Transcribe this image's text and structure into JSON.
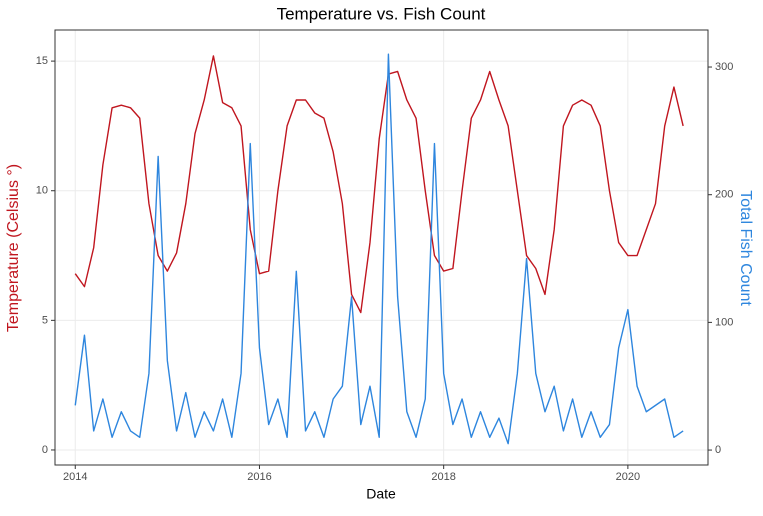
{
  "chart_data": {
    "type": "line",
    "title": "Temperature vs. Fish Count",
    "x_label": "Date",
    "y_label": "Temperature (Celsius °)",
    "y2_label": "Total Fish Count",
    "x": [
      2014.0,
      2014.1,
      2014.2,
      2014.3,
      2014.4,
      2014.5,
      2014.6,
      2014.7,
      2014.8,
      2014.9,
      2015.0,
      2015.1,
      2015.2,
      2015.3,
      2015.4,
      2015.5,
      2015.6,
      2015.7,
      2015.8,
      2015.9,
      2016.0,
      2016.1,
      2016.2,
      2016.3,
      2016.4,
      2016.5,
      2016.6,
      2016.7,
      2016.8,
      2016.9,
      2017.0,
      2017.1,
      2017.2,
      2017.3,
      2017.4,
      2017.5,
      2017.6,
      2017.7,
      2017.8,
      2017.9,
      2018.0,
      2018.1,
      2018.2,
      2018.3,
      2018.4,
      2018.5,
      2018.6,
      2018.7,
      2018.8,
      2018.9,
      2019.0,
      2019.1,
      2019.2,
      2019.3,
      2019.4,
      2019.5,
      2019.6,
      2019.7,
      2019.8,
      2019.9,
      2020.0,
      2020.1,
      2020.2,
      2020.3,
      2020.4,
      2020.5,
      2020.6
    ],
    "series": [
      {
        "name": "Temperature",
        "color": "#c0161f",
        "axis": "y",
        "values": [
          6.8,
          6.3,
          7.8,
          11,
          13.2,
          13.3,
          13.2,
          12.8,
          9.5,
          7.5,
          6.9,
          7.6,
          9.5,
          12.2,
          13.5,
          15.2,
          13.4,
          13.2,
          12.5,
          8.5,
          6.8,
          6.9,
          10,
          12.5,
          13.5,
          13.5,
          13,
          12.8,
          11.5,
          9.5,
          6,
          5.3,
          8,
          12,
          14.5,
          14.6,
          13.5,
          12.8,
          10,
          7.5,
          6.9,
          7,
          10,
          12.8,
          13.5,
          14.6,
          13.5,
          12.5,
          10,
          7.5,
          7,
          6,
          8.5,
          12.5,
          13.3,
          13.5,
          13.3,
          12.5,
          10,
          8,
          7.5,
          7.5,
          8.5,
          9.5,
          12.5,
          14,
          12.5
        ]
      },
      {
        "name": "Total Fish Count",
        "color": "#2e86de",
        "axis": "y2",
        "values": [
          35,
          90,
          15,
          40,
          10,
          30,
          15,
          10,
          60,
          230,
          70,
          15,
          45,
          10,
          30,
          15,
          40,
          10,
          60,
          240,
          80,
          20,
          40,
          10,
          140,
          15,
          30,
          10,
          40,
          50,
          120,
          20,
          50,
          10,
          310,
          120,
          30,
          10,
          40,
          240,
          60,
          20,
          40,
          10,
          30,
          10,
          25,
          5,
          60,
          150,
          60,
          30,
          50,
          15,
          40,
          10,
          30,
          10,
          20,
          80,
          110,
          50,
          30,
          35,
          40,
          10,
          15
        ]
      }
    ],
    "xlim": [
      2013.78,
      2020.87
    ],
    "xticks": [
      2014,
      2016,
      2018,
      2020
    ],
    "ylim": [
      -0.58,
      16.2
    ],
    "yticks": [
      0,
      5,
      10,
      15
    ],
    "y2lim": [
      -11.7,
      329
    ],
    "y2ticks": [
      0,
      100,
      200,
      300
    ],
    "grid": true
  }
}
